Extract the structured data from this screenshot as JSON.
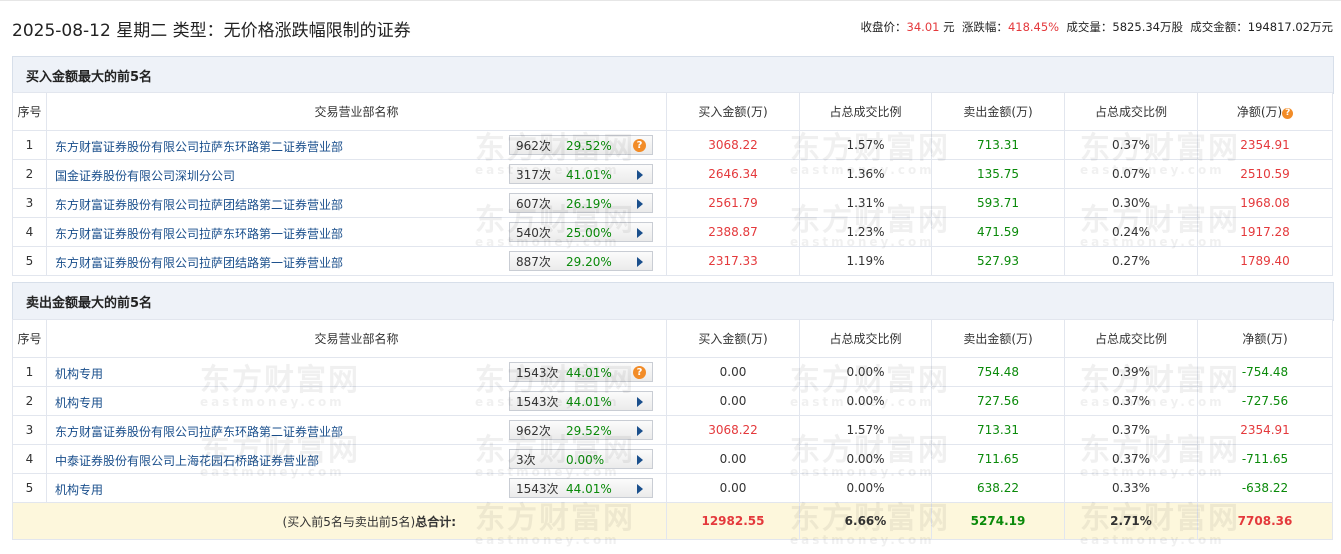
{
  "header": {
    "title": "2025-08-12 星期二 类型：无价格涨跌幅限制的证券",
    "close_label": "收盘价：",
    "close_value": "34.01",
    "close_unit": "元",
    "change_label": "涨跌幅：",
    "change_value": "418.45%",
    "volume_label": "成交量：",
    "volume_value": "5825.34万股",
    "amount_label": "成交金额：",
    "amount_value": "194817.02万元"
  },
  "watermark": {
    "cn": "东方财富网",
    "en": "eastmoney.com"
  },
  "columns": {
    "idx": "序号",
    "name": "交易营业部名称",
    "buy": "买入金额(万)",
    "buy_ratio": "占总成交比例",
    "sell": "卖出金额(万)",
    "sell_ratio": "占总成交比例",
    "net": "净额(万)"
  },
  "buy_section": {
    "title": "买入金额最大的前5名",
    "rows": [
      {
        "idx": "1",
        "name": "东方财富证券股份有限公司拉萨东环路第二证券营业部",
        "count": "962次",
        "pct": "29.52%",
        "icon": "question-icon",
        "buy": "3068.22",
        "buy_ratio": "1.57%",
        "sell": "713.31",
        "sell_ratio": "0.37%",
        "net": "2354.91"
      },
      {
        "idx": "2",
        "name": "国金证券股份有限公司深圳分公司",
        "count": "317次",
        "pct": "41.01%",
        "icon": "arrow-right-icon",
        "buy": "2646.34",
        "buy_ratio": "1.36%",
        "sell": "135.75",
        "sell_ratio": "0.07%",
        "net": "2510.59"
      },
      {
        "idx": "3",
        "name": "东方财富证券股份有限公司拉萨团结路第二证券营业部",
        "count": "607次",
        "pct": "26.19%",
        "icon": "arrow-right-icon",
        "buy": "2561.79",
        "buy_ratio": "1.31%",
        "sell": "593.71",
        "sell_ratio": "0.30%",
        "net": "1968.08"
      },
      {
        "idx": "4",
        "name": "东方财富证券股份有限公司拉萨东环路第一证券营业部",
        "count": "540次",
        "pct": "25.00%",
        "icon": "arrow-right-icon",
        "buy": "2388.87",
        "buy_ratio": "1.23%",
        "sell": "471.59",
        "sell_ratio": "0.24%",
        "net": "1917.28"
      },
      {
        "idx": "5",
        "name": "东方财富证券股份有限公司拉萨团结路第一证券营业部",
        "count": "887次",
        "pct": "29.20%",
        "icon": "arrow-right-icon",
        "buy": "2317.33",
        "buy_ratio": "1.19%",
        "sell": "527.93",
        "sell_ratio": "0.27%",
        "net": "1789.40"
      }
    ]
  },
  "sell_section": {
    "title": "卖出金额最大的前5名",
    "rows": [
      {
        "idx": "1",
        "name": "机构专用",
        "count": "1543次",
        "pct": "44.01%",
        "icon": "question-icon",
        "buy": "0.00",
        "buy_ratio": "0.00%",
        "sell": "754.48",
        "sell_ratio": "0.39%",
        "net": "-754.48"
      },
      {
        "idx": "2",
        "name": "机构专用",
        "count": "1543次",
        "pct": "44.01%",
        "icon": "arrow-right-icon",
        "buy": "0.00",
        "buy_ratio": "0.00%",
        "sell": "727.56",
        "sell_ratio": "0.37%",
        "net": "-727.56"
      },
      {
        "idx": "3",
        "name": "东方财富证券股份有限公司拉萨东环路第二证券营业部",
        "count": "962次",
        "pct": "29.52%",
        "icon": "arrow-right-icon",
        "buy": "3068.22",
        "buy_ratio": "1.57%",
        "sell": "713.31",
        "sell_ratio": "0.37%",
        "net": "2354.91"
      },
      {
        "idx": "4",
        "name": "中泰证券股份有限公司上海花园石桥路证券营业部",
        "count": "3次",
        "pct": "0.00%",
        "icon": "arrow-right-icon",
        "buy": "0.00",
        "buy_ratio": "0.00%",
        "sell": "711.65",
        "sell_ratio": "0.37%",
        "net": "-711.65"
      },
      {
        "idx": "5",
        "name": "机构专用",
        "count": "1543次",
        "pct": "44.01%",
        "icon": "arrow-right-icon",
        "buy": "0.00",
        "buy_ratio": "0.00%",
        "sell": "638.22",
        "sell_ratio": "0.33%",
        "net": "-638.22"
      }
    ]
  },
  "total": {
    "label_prefix": "(买入前5名与卖出前5名)",
    "label_bold": "总合计:",
    "buy": "12982.55",
    "buy_ratio": "6.66%",
    "sell": "5274.19",
    "sell_ratio": "2.71%",
    "net": "7708.36"
  },
  "colors": {
    "up": "#e4393c",
    "down": "#0a8a0a",
    "link": "#1a4f8c",
    "section_bg": "#eef2f8",
    "total_bg": "#fdf7dc"
  }
}
